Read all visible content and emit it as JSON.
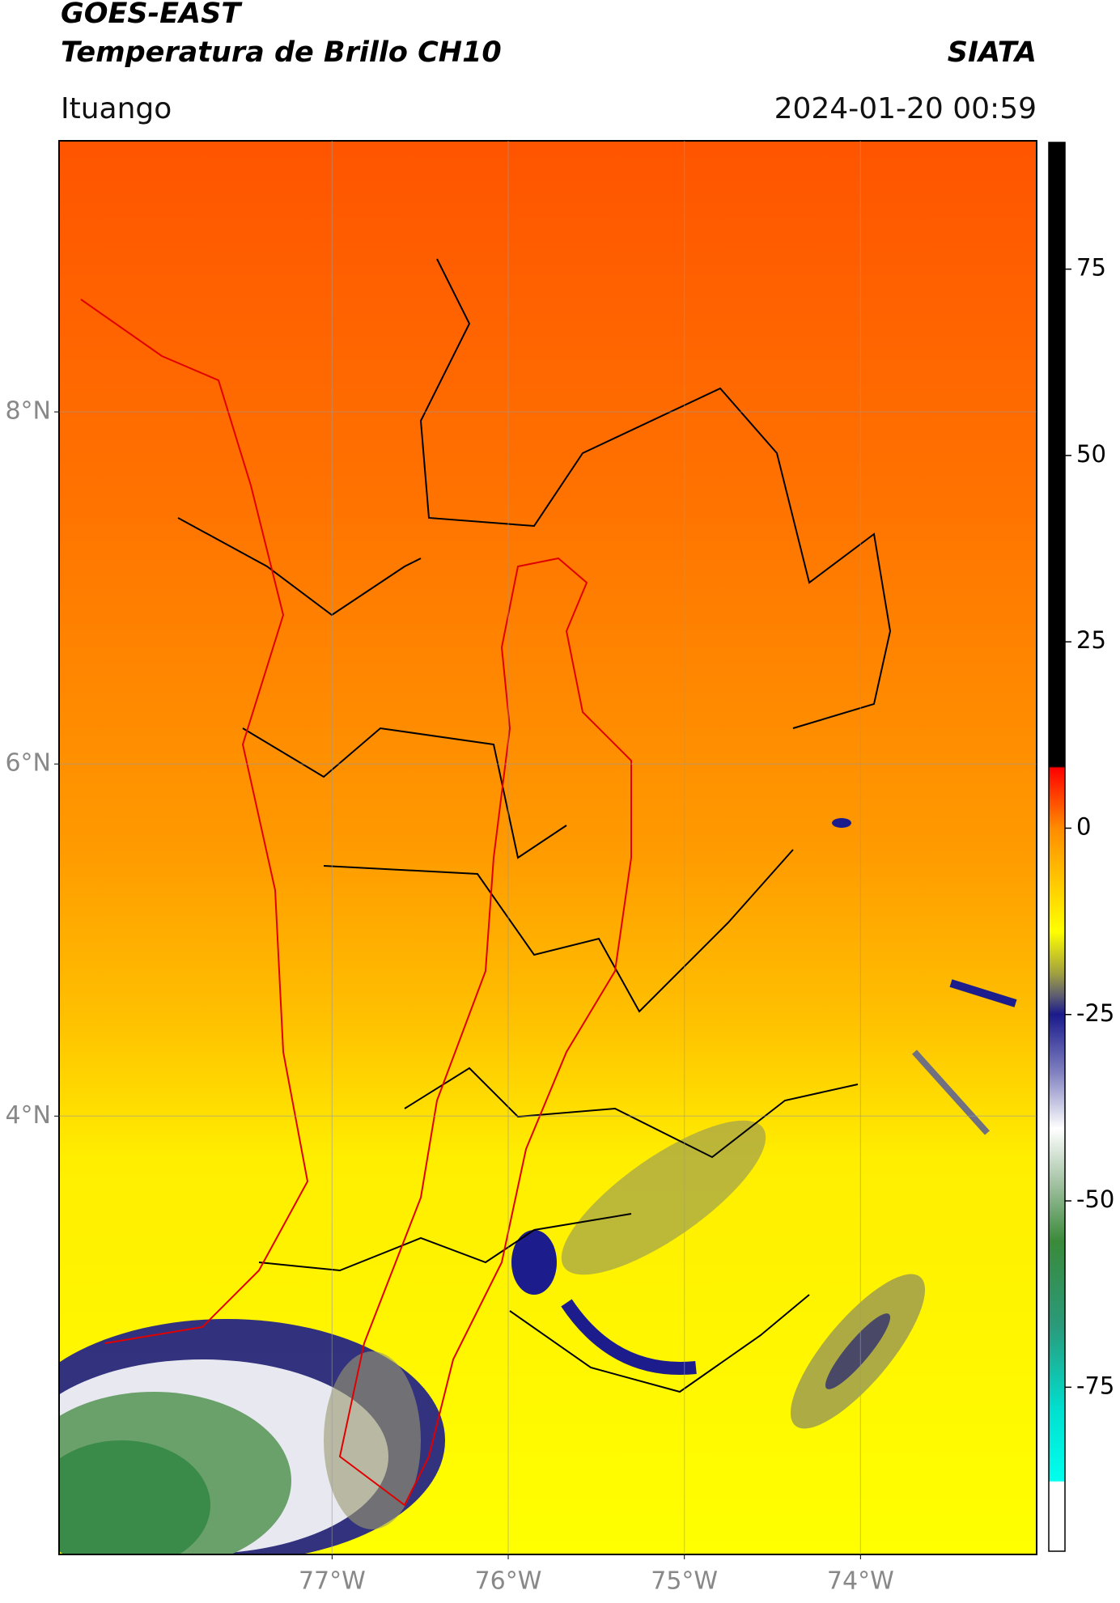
{
  "header": {
    "title": "GOES-EAST",
    "subtitle": "Temperatura de Brillo CH10",
    "source": "SIATA",
    "location": "Ituango",
    "timestamp": "2024-01-20 00:59"
  },
  "map": {
    "xlim": [
      -78.55,
      -73.0
    ],
    "ylim": [
      1.51,
      9.54
    ],
    "xticks": [
      {
        "value": -77,
        "label": "77°W"
      },
      {
        "value": -76,
        "label": "76°W"
      },
      {
        "value": -75,
        "label": "75°W"
      },
      {
        "value": -74,
        "label": "74°W"
      }
    ],
    "yticks": [
      {
        "value": 8,
        "label": "8°N"
      },
      {
        "value": 6,
        "label": "6°N"
      },
      {
        "value": 4,
        "label": "4°N"
      }
    ],
    "grid": true
  },
  "colorbar": {
    "lim": [
      -97,
      92
    ],
    "ticks": [
      75,
      50,
      25,
      0,
      -25,
      -50,
      -75
    ]
  }
}
